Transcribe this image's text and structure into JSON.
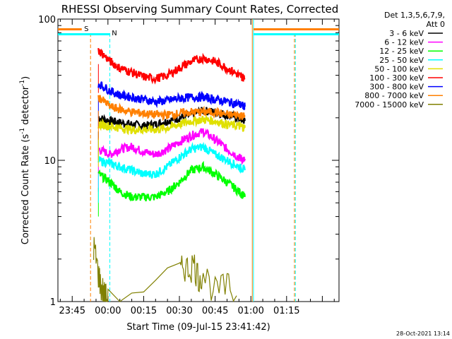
{
  "chart_data": {
    "type": "line",
    "title": "RHESSI Observing Summary Count Rates, Corrected",
    "xlabel": "Start Time (09-Jul-15 23:41:42)",
    "ylabel": "Corrected Count Rate (s⁻¹ detector⁻¹)",
    "ylabel_main": "Corrected Count Rate (s",
    "ylabel_sup1": "-1",
    "ylabel_mid": " detector",
    "ylabel_sup2": "-1",
    "ylabel_end": ")",
    "yscale": "log",
    "ylim": [
      1,
      100
    ],
    "xlim_minutes": [
      -21,
      97
    ],
    "x_ticks": [
      {
        "label": "23:45",
        "minutes": -15
      },
      {
        "label": "00:00",
        "minutes": 0
      },
      {
        "label": "00:15",
        "minutes": 15
      },
      {
        "label": "00:30",
        "minutes": 30
      },
      {
        "label": "00:45",
        "minutes": 45
      },
      {
        "label": "01:00",
        "minutes": 60
      },
      {
        "label": "01:15",
        "minutes": 75
      }
    ],
    "y_ticks": [
      {
        "label": "1",
        "value": 1
      },
      {
        "label": "10",
        "value": 10
      },
      {
        "label": "100",
        "value": 100
      }
    ],
    "legend_header": [
      "Det 1,3,5,6,7,9,",
      "Att 0"
    ],
    "legend_placement": "right",
    "series": [
      {
        "name": "3 - 6 keV",
        "color": "#000000",
        "x": [
          -4,
          1,
          5,
          10,
          15,
          20,
          25,
          30,
          35,
          40,
          45,
          50,
          55,
          57.5
        ],
        "y": [
          20,
          19,
          18.5,
          18,
          17.5,
          18,
          19,
          20,
          21,
          22.5,
          22,
          21,
          20,
          19
        ]
      },
      {
        "name": "6 - 12 keV",
        "color": "#ff00ff",
        "x": [
          -4,
          1,
          5,
          10,
          15,
          20,
          25,
          30,
          35,
          40,
          45,
          50,
          55,
          57.5
        ],
        "y": [
          12,
          11,
          12,
          12.5,
          11.5,
          11,
          12,
          13.5,
          15,
          16,
          14,
          12,
          10.5,
          10
        ]
      },
      {
        "name": "12 - 25 keV",
        "color": "#00ff00",
        "x": [
          -4,
          1,
          5,
          10,
          15,
          20,
          25,
          30,
          35,
          40,
          45,
          50,
          55,
          57.5
        ],
        "y": [
          8,
          7,
          6,
          5.5,
          5.5,
          5.5,
          6,
          7,
          8.5,
          9,
          8,
          7,
          6,
          5.5
        ]
      },
      {
        "name": "25 - 50 keV",
        "color": "#00ffff",
        "x": [
          -4,
          1,
          5,
          10,
          15,
          20,
          25,
          30,
          35,
          40,
          45,
          50,
          55,
          57.5
        ],
        "y": [
          10,
          9.5,
          9,
          8.5,
          8,
          8,
          9,
          10.5,
          12,
          12.5,
          11,
          10,
          9,
          8.5
        ]
      },
      {
        "name": "50 - 100 keV",
        "color": "#e0e000",
        "x": [
          -4,
          1,
          5,
          10,
          15,
          20,
          25,
          30,
          35,
          40,
          45,
          50,
          55,
          57.5
        ],
        "y": [
          18,
          17.5,
          17,
          16.5,
          16.5,
          16.5,
          17,
          18,
          19,
          19.5,
          19,
          18,
          17.5,
          17
        ]
      },
      {
        "name": "100 - 300 keV",
        "color": "#ff0000",
        "x": [
          -4,
          1,
          5,
          10,
          15,
          20,
          25,
          30,
          35,
          40,
          45,
          50,
          55,
          57.5
        ],
        "y": [
          60,
          50,
          45,
          42,
          39,
          38,
          40,
          45,
          50,
          53,
          50,
          45,
          40,
          38
        ]
      },
      {
        "name": "300 - 800 keV",
        "color": "#0000ff",
        "x": [
          -4,
          1,
          5,
          10,
          15,
          20,
          25,
          30,
          35,
          40,
          45,
          50,
          55,
          57.5
        ],
        "y": [
          35,
          31,
          29,
          28,
          27,
          26,
          26.5,
          27.5,
          28,
          28,
          27,
          26,
          25,
          24
        ]
      },
      {
        "name": "800 - 7000 keV",
        "color": "#ff8000",
        "x": [
          -4,
          1,
          5,
          10,
          15,
          20,
          25,
          30,
          35,
          40,
          45,
          50,
          55,
          57.5
        ],
        "y": [
          28,
          24,
          23,
          22,
          21.5,
          21,
          21,
          21.5,
          22,
          22,
          22,
          21,
          21,
          20.5
        ]
      },
      {
        "name": "7000 - 15000 keV",
        "color": "#808000",
        "x": [
          -6,
          -5,
          -4,
          -3,
          -2,
          -1,
          0,
          30,
          32,
          34,
          36,
          38,
          40,
          45,
          50,
          54
        ],
        "y": [
          2.5,
          2.0,
          1.6,
          1.3,
          1.2,
          1.1,
          1.0,
          1.6,
          1.8,
          1.7,
          1.9,
          1.5,
          1.6,
          1.2,
          1.3,
          1.1
        ]
      }
    ],
    "status_bar_segments": [
      {
        "label": "S",
        "color": "#ff8000"
      },
      {
        "label": "N",
        "color": "#00ffff"
      }
    ],
    "timestamp": "28-Oct-2021 13:14"
  }
}
